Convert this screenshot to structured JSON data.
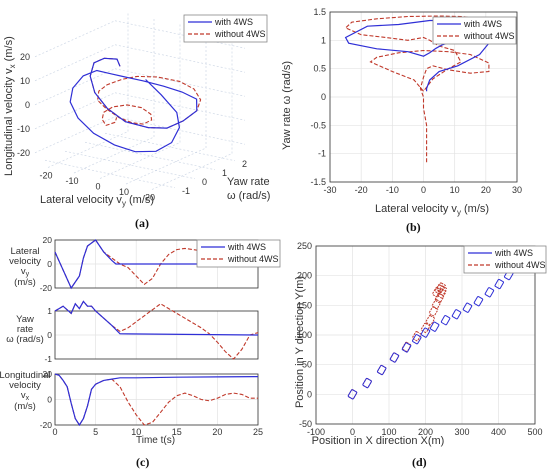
{
  "colors": {
    "with": "#2f2fd6",
    "without": "#c0392b",
    "axis": "#333333",
    "grid": "#e3e3e3"
  },
  "legend": {
    "with": "with 4WS",
    "without": "without 4WS"
  },
  "chart_data": [
    {
      "id": "a",
      "type": "line",
      "panel_label": "(a)",
      "axes3d": {
        "xlabel": "Lateral velocity v",
        "xlabel_sub": "y",
        "xlabel_unit": " (m/s)",
        "ylabel_l1": "Yaw rate",
        "ylabel_l2": "ω (rad/s)",
        "zlabel": "Longitudinal velocity v",
        "zlabel_sub": "x",
        "zlabel_unit": " (m/s)",
        "xticks": [
          "-20",
          "-10",
          "0",
          "10",
          "20"
        ],
        "yticks": [
          "-1",
          "0",
          "1",
          "2"
        ],
        "zticks": [
          "20",
          "10",
          "0",
          "-10",
          "-20"
        ]
      },
      "series": [
        {
          "name": "with 4WS",
          "x": [
            0,
            -5,
            -13,
            -20,
            -23,
            -22,
            -18,
            -11,
            -3,
            5,
            12,
            18,
            21,
            20,
            16,
            9,
            2,
            -5,
            -12,
            -18,
            -22,
            -23,
            -20,
            -14,
            -6,
            2,
            10,
            16,
            19,
            18,
            12,
            6
          ],
          "y": [
            -0.5,
            0,
            0.4,
            0.8,
            1.0,
            1.1,
            1.2,
            1.2,
            1.3,
            1.2,
            1.1,
            1.0,
            0.6,
            0,
            -0.4,
            -0.5,
            -0.5,
            -0.3,
            -0.1,
            0,
            0,
            0,
            0,
            0,
            0,
            0,
            0,
            0,
            0,
            0,
            0,
            0
          ],
          "z": [
            18,
            18,
            15,
            10,
            3,
            -4,
            -10,
            -14,
            -15,
            -13,
            -8,
            -2,
            5,
            10,
            13,
            14,
            14,
            13,
            12,
            8,
            2,
            -4,
            -10,
            -15,
            -18,
            -19,
            -17,
            -12,
            -5,
            1,
            7,
            12
          ]
        },
        {
          "name": "without 4WS",
          "x": [
            0,
            -5,
            -13,
            -20,
            -23,
            -22,
            -18,
            -11,
            -3,
            5,
            12,
            18,
            21,
            20,
            16,
            9,
            2,
            -3,
            -8,
            -12,
            -14,
            -12,
            -8,
            -3,
            2,
            6,
            8,
            6,
            2,
            -2,
            -4,
            -3,
            0,
            2,
            1
          ],
          "y": [
            -0.5,
            0,
            0.4,
            0.8,
            1.0,
            1.1,
            1.2,
            1.2,
            1.3,
            1.2,
            1.1,
            1.0,
            0.8,
            0.6,
            0.4,
            0.2,
            0.1,
            0,
            -0.1,
            0,
            0.2,
            0.4,
            0.5,
            0.5,
            0.4,
            0.3,
            0,
            -0.2,
            -0.4,
            -0.6,
            -0.8,
            -1.0,
            -1.2,
            -1.0,
            -0.8
          ],
          "z": [
            18,
            18,
            15,
            10,
            3,
            -4,
            -10,
            -14,
            -15,
            -13,
            -8,
            -2,
            4,
            9,
            12,
            13,
            12,
            10,
            7,
            3,
            -2,
            -6,
            -9,
            -10,
            -9,
            -6,
            -2,
            1,
            2,
            1,
            -1,
            -3,
            -4,
            -3,
            -2
          ]
        }
      ]
    },
    {
      "id": "b",
      "type": "line",
      "panel_label": "(b)",
      "xlabel": "Lateral velocity v",
      "xlabel_sub": "y",
      "xlabel_unit": " (m/s)",
      "ylabel": "Yaw rate ω (rad/s)",
      "xlim": [
        -30,
        30
      ],
      "ylim": [
        -1.5,
        1.5
      ],
      "xticks": [
        -30,
        -20,
        -10,
        0,
        10,
        20,
        30
      ],
      "yticks": [
        -1.5,
        -1,
        -0.5,
        0,
        0.5,
        1,
        1.5
      ],
      "series": [
        {
          "name": "with 4WS",
          "x": [
            1,
            1,
            2,
            5,
            11,
            18,
            21,
            21,
            18,
            10,
            2,
            -8,
            -18,
            -25,
            -24,
            -15,
            -5,
            0,
            2,
            4,
            6,
            8,
            10
          ],
          "y": [
            0.1,
            0.15,
            0.3,
            0.45,
            0.55,
            0.75,
            0.95,
            1.15,
            1.3,
            1.35,
            1.35,
            1.28,
            1.25,
            1.05,
            0.95,
            0.85,
            0.8,
            0.72,
            0.78,
            0.86,
            0.92,
            0.96,
            0.98
          ]
        },
        {
          "name": "without 4WS",
          "x": [
            1,
            1,
            1,
            0,
            0,
            -1,
            0,
            1,
            3,
            8,
            15,
            21,
            21,
            15,
            8,
            0,
            -8,
            -15,
            -17,
            -10,
            -3,
            0,
            3,
            8,
            12,
            10,
            5,
            2,
            0,
            -2,
            -5,
            -12,
            -20,
            -25,
            -23,
            -15,
            -5,
            5,
            12,
            18,
            22,
            20,
            14,
            5
          ],
          "y": [
            -1.15,
            -0.8,
            -0.5,
            -0.2,
            0,
            0.15,
            0.35,
            0.5,
            0.55,
            0.48,
            0.42,
            0.45,
            0.6,
            0.75,
            0.8,
            0.82,
            0.78,
            0.7,
            0.62,
            0.45,
            0.3,
            0.1,
            0.32,
            0.5,
            0.62,
            0.82,
            0.9,
            1.0,
            1.05,
            1.03,
            1.0,
            1.05,
            1.1,
            1.22,
            1.32,
            1.38,
            1.42,
            1.43,
            1.42,
            1.38,
            1.3,
            1.22,
            1.25,
            1.3
          ]
        }
      ]
    },
    {
      "id": "c",
      "type": "line",
      "panel_label": "(c)",
      "xlabel": "Time t(s)",
      "xlim": [
        0,
        25
      ],
      "xticks": [
        0,
        5,
        10,
        15,
        20,
        25
      ],
      "subplots": [
        {
          "ylabel_l1": "Lateral",
          "ylabel_l2": "velocity",
          "ylabel_l3": "v",
          "ylabel_l3_sub": "y",
          "ylabel_l4": "(m/s)",
          "ylim": [
            -20,
            20
          ],
          "yticks": [
            20,
            0,
            -20
          ],
          "series": [
            {
              "name": "with 4WS",
              "x": [
                0,
                1,
                2,
                3,
                3.5,
                4,
                5,
                6,
                7,
                7.5,
                8,
                25
              ],
              "y": [
                10,
                -5,
                -20,
                -10,
                5,
                15,
                20,
                10,
                3,
                0,
                0,
                0
              ]
            },
            {
              "name": "without 4WS",
              "x": [
                0,
                1,
                2,
                3,
                3.5,
                4,
                5,
                6,
                7,
                8,
                9,
                10,
                11,
                12,
                13,
                14,
                15,
                16,
                17,
                18,
                19,
                20,
                21,
                22,
                23,
                24,
                25
              ],
              "y": [
                10,
                -5,
                -20,
                -10,
                5,
                15,
                20,
                10,
                5,
                0,
                -3,
                -10,
                -17,
                -12,
                0,
                8,
                12,
                13,
                12,
                11,
                11,
                12,
                12,
                11,
                10,
                10,
                10
              ]
            }
          ]
        },
        {
          "ylabel_l1": "Yaw",
          "ylabel_l2": "rate",
          "ylabel_l3": "ω (rad/s)",
          "ylim": [
            -1,
            1
          ],
          "yticks": [
            1,
            0,
            -1
          ],
          "series": [
            {
              "name": "with 4WS",
              "x": [
                0,
                1,
                2,
                2.5,
                3,
                3.5,
                4,
                4.5,
                5,
                6,
                7,
                8,
                25
              ],
              "y": [
                1,
                1.2,
                0.9,
                1.3,
                1.1,
                1.4,
                1.2,
                1.2,
                1.0,
                0.7,
                0.4,
                0.05,
                0
              ]
            },
            {
              "name": "without 4WS",
              "x": [
                0,
                1,
                2,
                2.5,
                3,
                3.5,
                4,
                4.5,
                5,
                6,
                7,
                8,
                9,
                10,
                11,
                12,
                13,
                14,
                15,
                16,
                17,
                18,
                19,
                20,
                21,
                22,
                23,
                24,
                25
              ],
              "y": [
                1,
                1.2,
                0.9,
                1.3,
                1.1,
                1.4,
                1.2,
                1.2,
                1.0,
                0.7,
                0.4,
                0.15,
                0.3,
                0.55,
                0.8,
                1.05,
                1.3,
                1.1,
                0.9,
                0.7,
                0.5,
                0.3,
                0.05,
                -0.3,
                -0.7,
                -1.0,
                -0.6,
                0,
                0.1
              ]
            }
          ]
        },
        {
          "ylabel_l1": "Longitudinal",
          "ylabel_l2": "velocity",
          "ylabel_l3": "v",
          "ylabel_l3_sub": "x",
          "ylabel_l4": "(m/s)",
          "ylim": [
            -20,
            20
          ],
          "yticks": [
            20,
            0,
            -20
          ],
          "series": [
            {
              "name": "with 4WS",
              "x": [
                0,
                0.5,
                1,
                1.5,
                2,
                2.5,
                3,
                3.5,
                4,
                4.5,
                5,
                6,
                7,
                8,
                10,
                15,
                20,
                25
              ],
              "y": [
                20,
                19,
                15,
                10,
                -3,
                -15,
                -20,
                -15,
                -5,
                8,
                12,
                15,
                16,
                17,
                17,
                17.5,
                17.7,
                18
              ]
            },
            {
              "name": "without 4WS",
              "x": [
                0,
                0.5,
                1,
                1.5,
                2,
                2.5,
                3,
                3.5,
                4,
                4.5,
                5,
                6,
                7,
                8,
                9,
                10,
                11,
                12,
                13,
                14,
                15,
                16,
                17,
                18,
                19,
                20,
                21,
                22,
                23,
                24,
                25
              ],
              "y": [
                20,
                19,
                15,
                10,
                -3,
                -15,
                -20,
                -15,
                -5,
                8,
                12,
                15,
                16,
                10,
                -2,
                -12,
                -20,
                -18,
                -10,
                -2,
                3,
                5,
                3,
                0,
                -1,
                1,
                4,
                5,
                4,
                1,
                1
              ]
            }
          ]
        }
      ]
    },
    {
      "id": "d",
      "type": "scatter",
      "panel_label": "(d)",
      "xlabel": "Position in X direction X(m)",
      "ylabel": "Position in Y direction Y(m)",
      "xlim": [
        -100,
        500
      ],
      "ylim": [
        -50,
        250
      ],
      "xticks": [
        -100,
        0,
        100,
        200,
        300,
        400,
        500
      ],
      "yticks": [
        -50,
        0,
        50,
        100,
        150,
        200,
        250
      ],
      "series": [
        {
          "name": "with 4WS",
          "x": [
            0,
            40,
            80,
            115,
            148,
            176,
            200,
            225,
            255,
            285,
            315,
            345,
            375,
            402,
            428
          ],
          "y": [
            0,
            19,
            41,
            62,
            79,
            93,
            104,
            114,
            125,
            135,
            146,
            157,
            172,
            186,
            201
          ]
        },
        {
          "name": "without 4WS",
          "x": [
            0,
            40,
            80,
            115,
            148,
            176,
            200,
            213,
            222,
            230,
            238,
            244,
            246,
            243,
            238,
            231
          ],
          "y": [
            0,
            19,
            41,
            62,
            80,
            98,
            112,
            125,
            140,
            152,
            162,
            170,
            175,
            180,
            177,
            172
          ]
        }
      ]
    }
  ]
}
